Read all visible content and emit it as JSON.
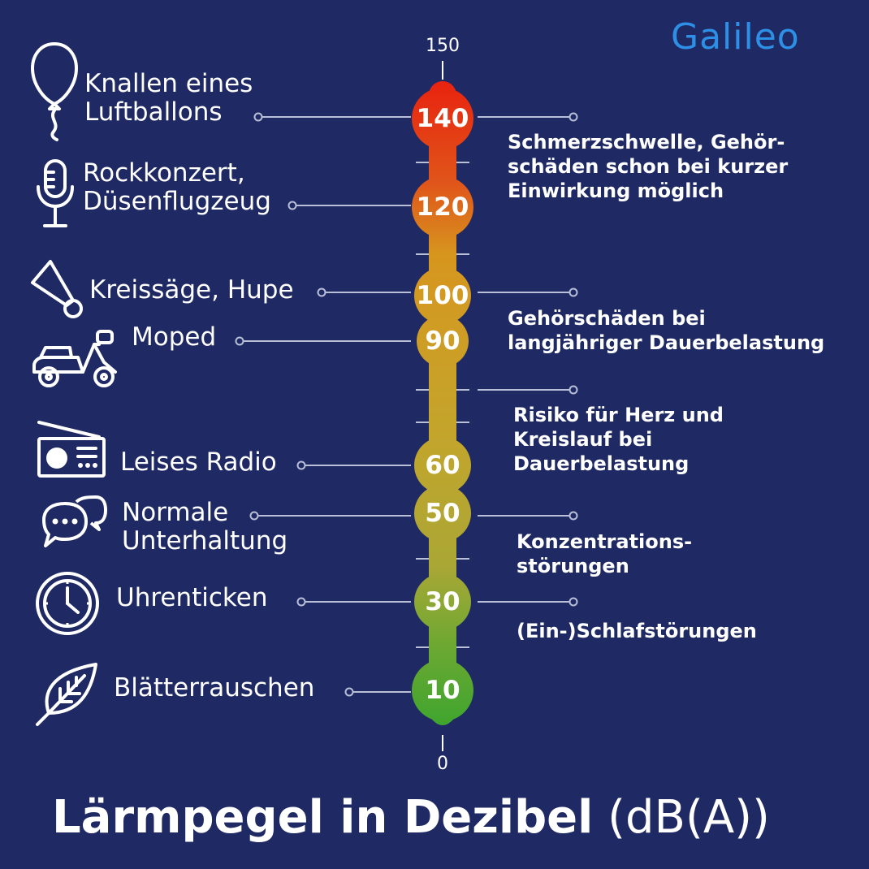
{
  "logo": "Galileo",
  "title": {
    "main": "Lärmpegel in Dezibel",
    "unit": "(dB(A))"
  },
  "scale": {
    "min_label": "0",
    "max_label": "150"
  },
  "sources": [
    {
      "db": "140",
      "lines": [
        "Knallen eines",
        "Luftballons"
      ],
      "icon": "balloon-icon"
    },
    {
      "db": "120",
      "lines": [
        "Rockkonzert,",
        "Düsenflugzeug"
      ],
      "icon": "microphone-icon"
    },
    {
      "db": "100",
      "lines": [
        "Kreissäge, Hupe"
      ],
      "icon": "horn-icon"
    },
    {
      "db": "90",
      "lines": [
        "Moped"
      ],
      "icon": "scooter-icon"
    },
    {
      "db": "60",
      "lines": [
        "Leises Radio"
      ],
      "icon": "radio-icon"
    },
    {
      "db": "50",
      "lines": [
        "Normale",
        "Unterhaltung"
      ],
      "icon": "chat-bubbles-icon"
    },
    {
      "db": "30",
      "lines": [
        "Uhrenticken"
      ],
      "icon": "clock-icon"
    },
    {
      "db": "10",
      "lines": [
        "Blätterrauschen"
      ],
      "icon": "leaf-icon"
    }
  ],
  "effects": [
    {
      "lines": [
        "Schmerzschwelle, Gehör-",
        "schäden schon bei kurzer",
        "Einwirkung möglich"
      ]
    },
    {
      "lines": [
        "Gehörschäden bei",
        "langjähriger Dauerbelastung"
      ]
    },
    {
      "lines": [
        "Risiko für Herz und",
        "Kreislauf bei",
        "Dauerbelastung"
      ]
    },
    {
      "lines": [
        "Konzentrations-",
        "störungen"
      ]
    },
    {
      "lines": [
        "(Ein-)Schlafstörungen"
      ]
    }
  ],
  "colors": {
    "background": "#1f2a64",
    "logo": "#2d8fe6",
    "gradient_top": "#e8230f",
    "gradient_upper": "#d7961e",
    "gradient_mid": "#bfa233",
    "gradient_bottom": "#3ea52e"
  }
}
